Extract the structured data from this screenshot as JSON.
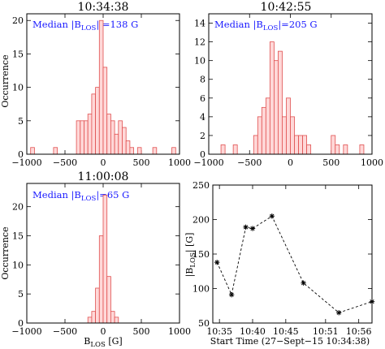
{
  "colors": {
    "bar_fill": "#ffd8d8",
    "bar_edge": "#e05050",
    "annotation": "#1a1aff"
  },
  "chart_data": [
    {
      "type": "bar",
      "title": "10:34:38",
      "annotation": "Median |B_LOS| =138 G",
      "ylabel": "Occurrence",
      "xlabel": "",
      "xlim": [
        -1000,
        1000
      ],
      "ylim": [
        0,
        21
      ],
      "xticks": [
        -1000,
        -500,
        0,
        500,
        1000
      ],
      "yticks": [
        0,
        5,
        10,
        15,
        20
      ],
      "bin_width": 50,
      "bin_starts": [
        -950,
        -650,
        -350,
        -300,
        -250,
        -200,
        -150,
        -100,
        -50,
        0,
        50,
        100,
        150,
        200,
        250,
        300,
        350,
        450,
        650,
        900
      ],
      "values": [
        1,
        1,
        5,
        5,
        5,
        6,
        9,
        10,
        20,
        13,
        6,
        5,
        3,
        5,
        4,
        2,
        1,
        1,
        1,
        1
      ]
    },
    {
      "type": "bar",
      "title": "10:42:55",
      "annotation": "Median |B_LOS|=205 G",
      "ylabel": "Occurrence",
      "xlabel": "",
      "xlim": [
        -1000,
        1000
      ],
      "ylim": [
        0,
        15
      ],
      "xticks": [
        -1000,
        -500,
        0,
        500,
        1000
      ],
      "yticks": [
        0,
        2,
        4,
        6,
        8,
        10,
        12,
        14
      ],
      "bin_width": 50,
      "bin_starts": [
        -850,
        -700,
        -450,
        -400,
        -350,
        -300,
        -250,
        -200,
        -150,
        -100,
        -50,
        0,
        50,
        100,
        150,
        200,
        500,
        550,
        650,
        850
      ],
      "values": [
        1,
        1,
        2,
        4,
        5,
        6,
        12,
        10,
        11,
        4,
        6,
        4,
        2,
        2,
        2,
        1,
        2,
        1,
        1,
        1
      ]
    },
    {
      "type": "bar",
      "title": "11:00:08",
      "annotation": "Median |B_LOS|=65 G",
      "ylabel": "Occurrence",
      "xlabel": "B_LOS [G]",
      "xlim": [
        -1000,
        1000
      ],
      "ylim": [
        0,
        24
      ],
      "xticks": [
        -1000,
        -500,
        0,
        500,
        1000
      ],
      "yticks": [
        0,
        5,
        10,
        15,
        20
      ],
      "bin_width": 50,
      "bin_starts": [
        -200,
        -150,
        -100,
        -50,
        0,
        50,
        100,
        150
      ],
      "values": [
        1,
        2,
        6,
        15,
        22,
        8,
        2,
        1
      ]
    },
    {
      "type": "scatter",
      "title": "",
      "ylabel": "|B_LOS| [G]",
      "xlabel": "Start Time (27−Sept−15 10:34:38)",
      "xlim": [
        "10:34",
        "10:58"
      ],
      "ylim": [
        50,
        250
      ],
      "xticks": [
        "10:35",
        "10:40",
        "10:45",
        "10:51",
        "10:56"
      ],
      "yticks": [
        50,
        100,
        150,
        200,
        250
      ],
      "x": [
        "10:34:38",
        "10:36:50",
        "10:38:58",
        "10:40:00",
        "10:42:55",
        "10:47:40",
        "10:53:00",
        "10:58:00"
      ],
      "values": [
        138,
        91,
        189,
        187,
        205,
        108,
        65,
        81
      ],
      "line_style": "dashed",
      "marker": "asterisk"
    }
  ]
}
